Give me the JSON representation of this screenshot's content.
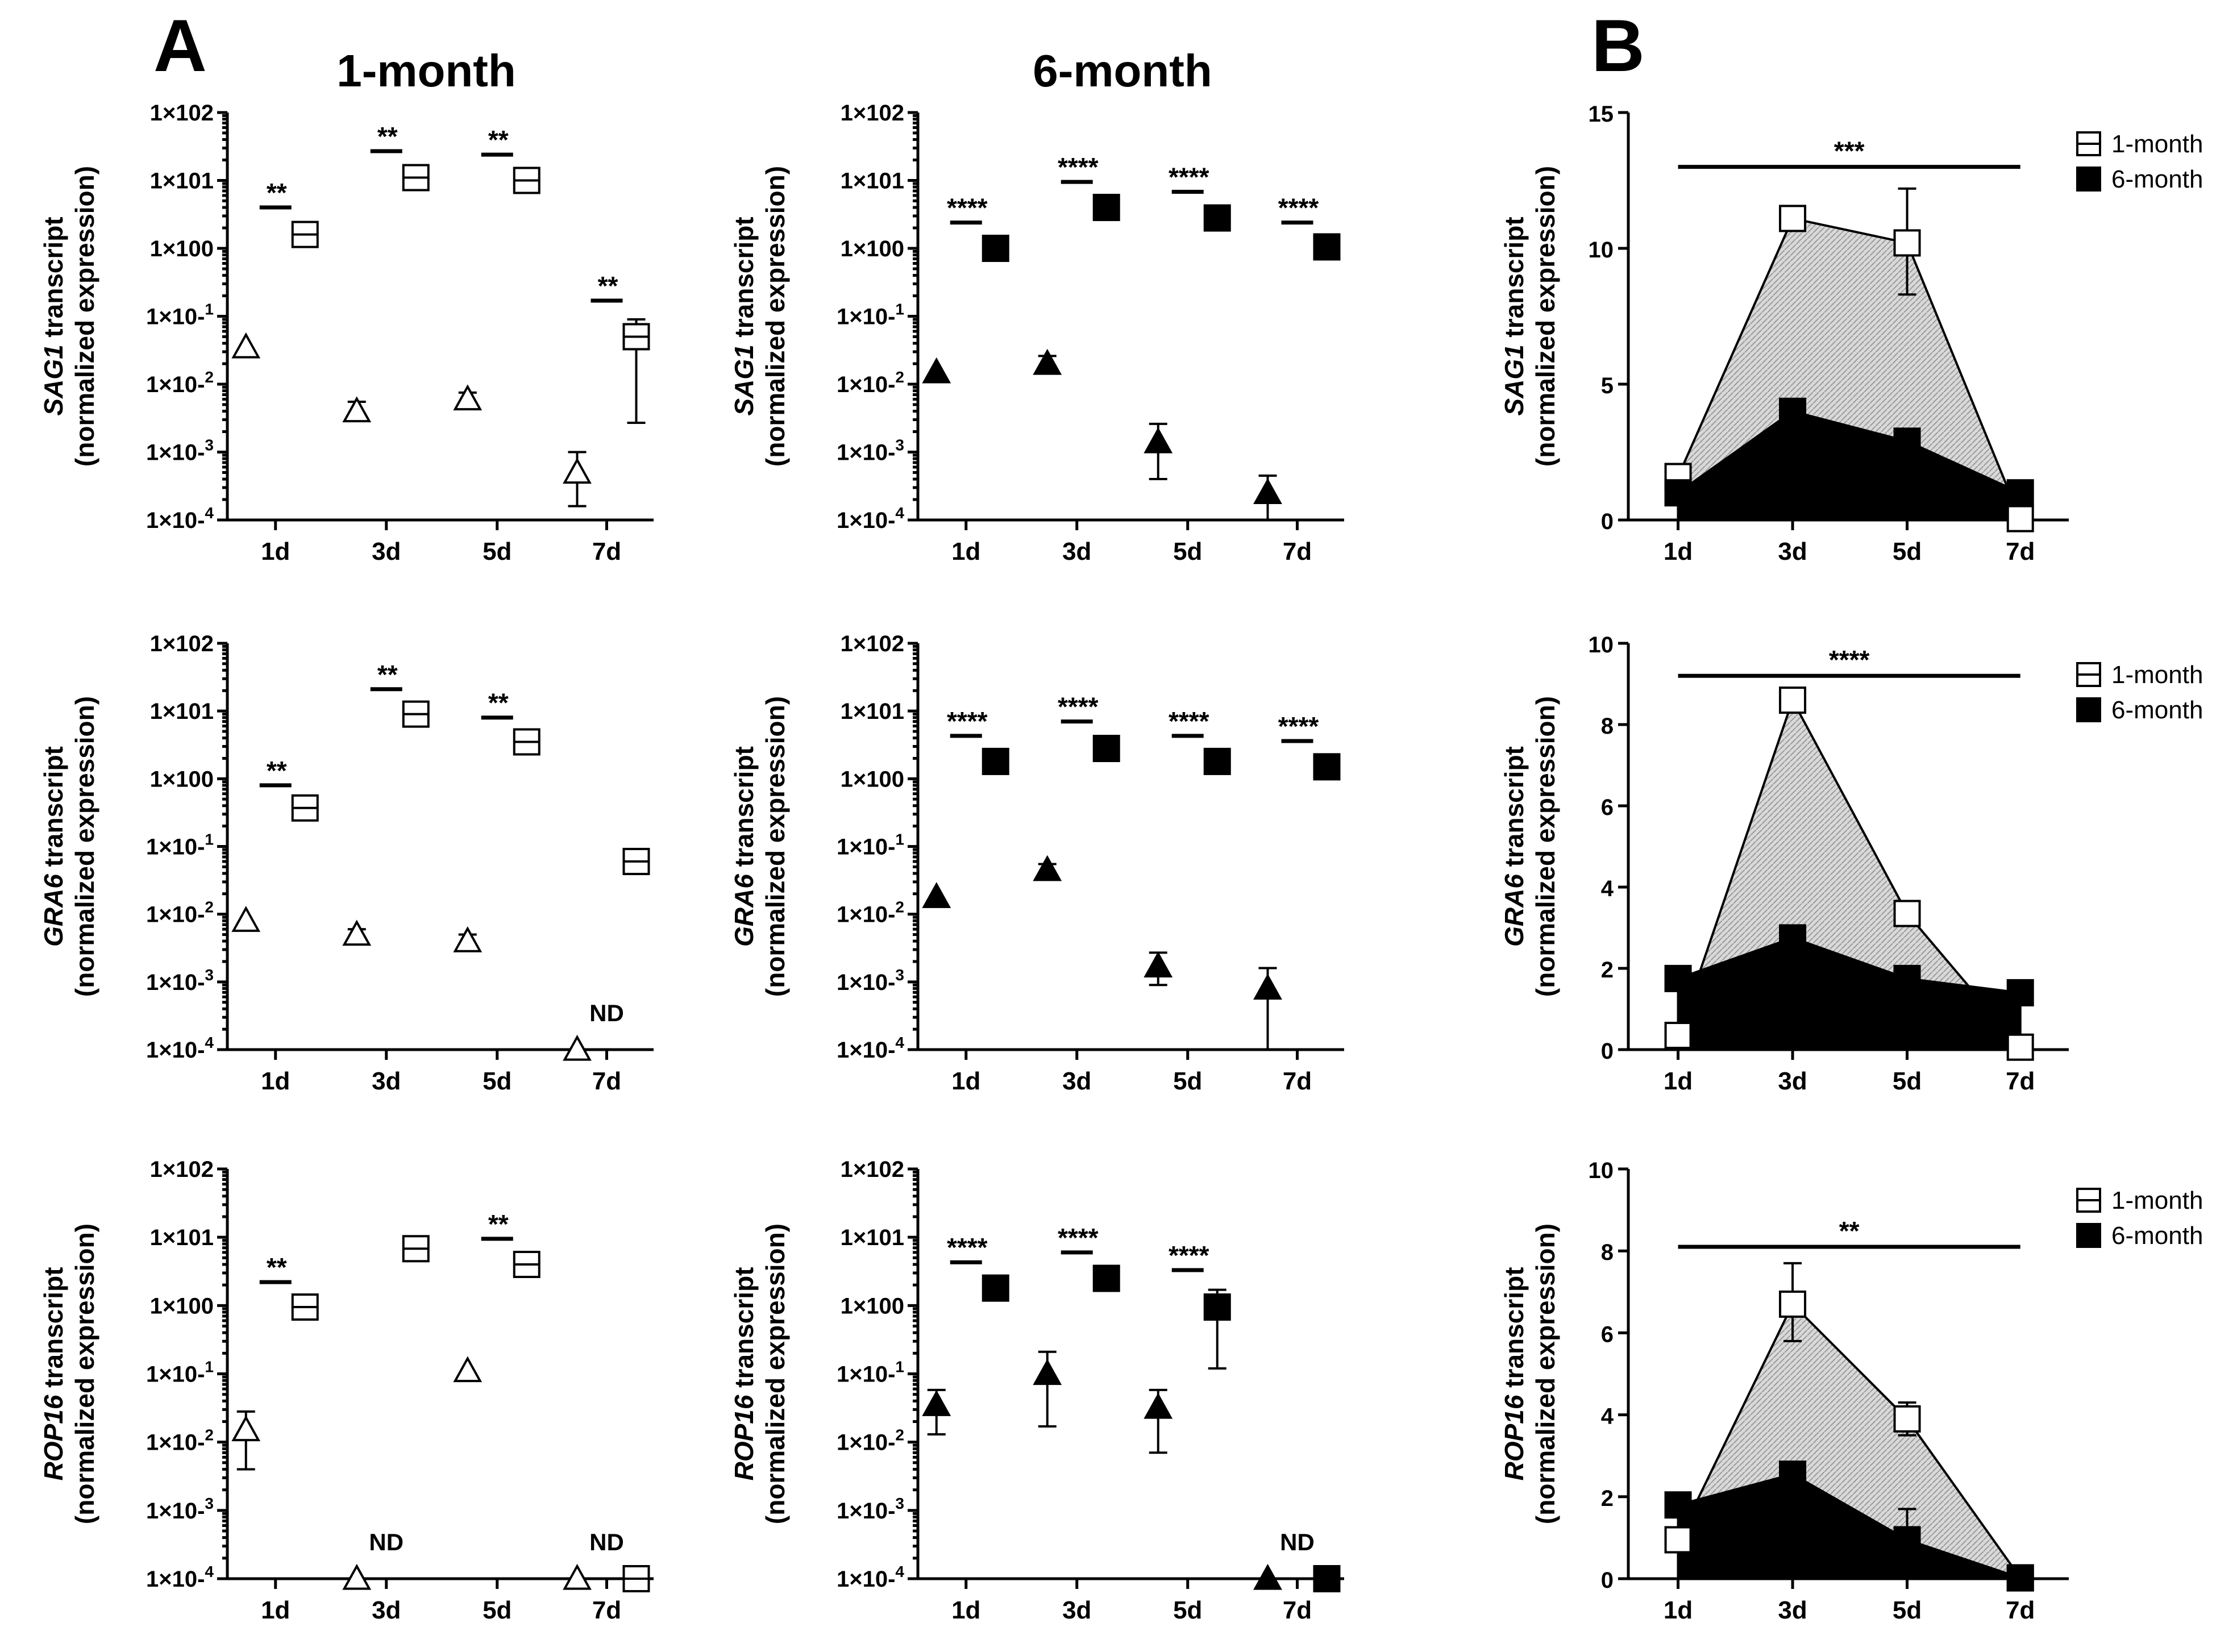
{
  "figure": {
    "panel_labels": [
      "A",
      "B"
    ],
    "column_titles": [
      "1-month",
      "6-month"
    ],
    "x_categories": [
      "1d",
      "3d",
      "5d",
      "7d"
    ],
    "log_tick_labels": [
      "1×10-4",
      "1×10-3",
      "1×10-2",
      "1×10-1",
      "1×100",
      "1×101",
      "1×102"
    ],
    "nd_label": "ND",
    "legend": [
      "1-month",
      "6-month"
    ],
    "colors": {
      "black": "#000000",
      "shade": "#d4d4d4",
      "white": "#ffffff"
    }
  },
  "chart_data": [
    {
      "id": "A-SAG1-1m",
      "type": "scatter",
      "scale": "log",
      "ylim": [
        0.0001,
        100
      ],
      "gene": "SAG1",
      "ylabel_suffix": " transcript",
      "ylabel2": "(normalized expression)",
      "categories": [
        "1d",
        "3d",
        "5d",
        "7d"
      ],
      "series": [
        {
          "name": "triangle",
          "marker": "triangle",
          "filled": false,
          "values": [
            0.035,
            0.004,
            0.006,
            0.0005
          ],
          "err": [
            null,
            [
              0.003,
              0.0055
            ],
            [
              0.005,
              0.0075
            ],
            [
              0.00016,
              0.001
            ]
          ]
        },
        {
          "name": "square",
          "marker": "square",
          "filled": false,
          "hline": true,
          "values": [
            1.6,
            11,
            10,
            0.05
          ],
          "err": [
            null,
            null,
            null,
            [
              0.0027,
              0.09
            ]
          ]
        }
      ],
      "significance": [
        {
          "cat": 0,
          "label": "**",
          "y": 4
        },
        {
          "cat": 1,
          "label": "**",
          "y": 27
        },
        {
          "cat": 2,
          "label": "**",
          "y": 24
        },
        {
          "cat": 3,
          "label": "**",
          "y": 0.17
        }
      ],
      "nd": []
    },
    {
      "id": "A-SAG1-6m",
      "type": "scatter",
      "scale": "log",
      "ylim": [
        0.0001,
        100
      ],
      "gene": "SAG1",
      "ylabel_suffix": " transcript",
      "ylabel2": "(normalized expression)",
      "categories": [
        "1d",
        "3d",
        "5d",
        "7d"
      ],
      "series": [
        {
          "name": "triangle",
          "marker": "triangle",
          "filled": true,
          "values": [
            0.015,
            0.02,
            0.0014,
            0.00025
          ],
          "err": [
            null,
            [
              0.016,
              0.026
            ],
            [
              0.0004,
              0.0026
            ],
            [
              0.0001,
              0.00045
            ]
          ]
        },
        {
          "name": "square",
          "marker": "square",
          "filled": true,
          "values": [
            1.0,
            4.0,
            2.8,
            1.05
          ],
          "err": [
            null,
            null,
            null,
            null
          ]
        }
      ],
      "significance": [
        {
          "cat": 0,
          "label": "****",
          "y": 2.4
        },
        {
          "cat": 1,
          "label": "****",
          "y": 9.5
        },
        {
          "cat": 2,
          "label": "****",
          "y": 6.8
        },
        {
          "cat": 3,
          "label": "****",
          "y": 2.4
        }
      ],
      "nd": []
    },
    {
      "id": "B-SAG1",
      "type": "area",
      "scale": "linear",
      "ylim": [
        0,
        15
      ],
      "yticks": [
        0,
        5,
        10,
        15
      ],
      "gene": "SAG1",
      "ylabel_suffix": " transcript",
      "ylabel2": "(normalized expression)",
      "categories": [
        "1d",
        "3d",
        "5d",
        "7d"
      ],
      "series": [
        {
          "name": "1-month",
          "values": [
            1.6,
            11.1,
            10.2,
            0.05
          ],
          "err": [
            null,
            null,
            [
              8.3,
              12.2
            ],
            null
          ]
        },
        {
          "name": "6-month",
          "values": [
            1.0,
            4.0,
            2.9,
            1.0
          ],
          "err": [
            null,
            null,
            null,
            null
          ]
        }
      ],
      "sig_bar": {
        "label": "***",
        "y": 13.0
      }
    },
    {
      "id": "A-GRA6-1m",
      "type": "scatter",
      "scale": "log",
      "ylim": [
        0.0001,
        100
      ],
      "gene": "GRA6",
      "ylabel_suffix": " transcript",
      "ylabel2": "(normalized expression)",
      "categories": [
        "1d",
        "3d",
        "5d",
        "7d"
      ],
      "series": [
        {
          "name": "triangle",
          "marker": "triangle",
          "filled": false,
          "values": [
            0.008,
            0.005,
            0.004,
            0.0001
          ],
          "err": [
            null,
            [
              0.004,
              0.006
            ],
            [
              0.003,
              0.005
            ],
            null
          ]
        },
        {
          "name": "square",
          "marker": "square",
          "filled": false,
          "hline": true,
          "values": [
            0.37,
            9,
            3.5,
            0.06
          ],
          "err": [
            [
              0.25,
              0.5
            ],
            null,
            null,
            null
          ]
        }
      ],
      "significance": [
        {
          "cat": 0,
          "label": "**",
          "y": 0.8
        },
        {
          "cat": 1,
          "label": "**",
          "y": 21
        },
        {
          "cat": 2,
          "label": "**",
          "y": 8
        }
      ],
      "nd": [
        3
      ]
    },
    {
      "id": "A-GRA6-6m",
      "type": "scatter",
      "scale": "log",
      "ylim": [
        0.0001,
        100
      ],
      "gene": "GRA6",
      "ylabel_suffix": " transcript",
      "ylabel2": "(normalized expression)",
      "categories": [
        "1d",
        "3d",
        "5d",
        "7d"
      ],
      "series": [
        {
          "name": "triangle",
          "marker": "triangle",
          "filled": true,
          "values": [
            0.018,
            0.045,
            0.0017,
            0.0008
          ],
          "err": [
            null,
            [
              0.038,
              0.055
            ],
            [
              0.0009,
              0.0027
            ],
            [
              0.0001,
              0.0016
            ]
          ]
        },
        {
          "name": "square",
          "marker": "square",
          "filled": true,
          "values": [
            1.8,
            2.8,
            1.8,
            1.5
          ],
          "err": [
            null,
            null,
            null,
            null
          ]
        }
      ],
      "significance": [
        {
          "cat": 0,
          "label": "****",
          "y": 4.3
        },
        {
          "cat": 1,
          "label": "****",
          "y": 7.0
        },
        {
          "cat": 2,
          "label": "****",
          "y": 4.3
        },
        {
          "cat": 3,
          "label": "****",
          "y": 3.6
        }
      ],
      "nd": []
    },
    {
      "id": "B-GRA6",
      "type": "area",
      "scale": "linear",
      "ylim": [
        0,
        10
      ],
      "yticks": [
        0,
        2,
        4,
        6,
        8,
        10
      ],
      "gene": "GRA6",
      "ylabel_suffix": " transcript",
      "ylabel2": "(normalized expression)",
      "categories": [
        "1d",
        "3d",
        "5d",
        "7d"
      ],
      "series": [
        {
          "name": "1-month",
          "values": [
            0.35,
            8.6,
            3.35,
            0.06
          ],
          "err": [
            null,
            null,
            null,
            null
          ]
        },
        {
          "name": "6-month",
          "values": [
            1.75,
            2.75,
            1.75,
            1.4
          ],
          "err": [
            null,
            null,
            null,
            null
          ]
        }
      ],
      "sig_bar": {
        "label": "****",
        "y": 9.2
      }
    },
    {
      "id": "A-ROP16-1m",
      "type": "scatter",
      "scale": "log",
      "ylim": [
        0.0001,
        100
      ],
      "gene": "ROP16",
      "ylabel_suffix": " transcript",
      "ylabel2": "(normalized expression)",
      "categories": [
        "1d",
        "3d",
        "5d",
        "7d"
      ],
      "series": [
        {
          "name": "triangle",
          "marker": "triangle",
          "filled": false,
          "values": [
            0.015,
            0.0001,
            0.11,
            0.0001
          ],
          "err": [
            [
              0.004,
              0.028
            ],
            null,
            null,
            null
          ]
        },
        {
          "name": "square",
          "marker": "square",
          "filled": false,
          "hline": true,
          "values": [
            0.95,
            6.8,
            4.0,
            0.0001
          ],
          "err": [
            null,
            null,
            [
              3.0,
              5.2
            ],
            null
          ]
        }
      ],
      "significance": [
        {
          "cat": 0,
          "label": "**",
          "y": 2.2
        },
        {
          "cat": 2,
          "label": "**",
          "y": 9.5
        }
      ],
      "nd": [
        1,
        3
      ]
    },
    {
      "id": "A-ROP16-6m",
      "type": "scatter",
      "scale": "log",
      "ylim": [
        0.0001,
        100
      ],
      "gene": "ROP16",
      "ylabel_suffix": " transcript",
      "ylabel2": "(normalized expression)",
      "categories": [
        "1d",
        "3d",
        "5d",
        "7d"
      ],
      "series": [
        {
          "name": "triangle",
          "marker": "triangle",
          "filled": true,
          "values": [
            0.035,
            0.1,
            0.032,
            0.0001
          ],
          "err": [
            [
              0.013,
              0.058
            ],
            [
              0.017,
              0.21
            ],
            [
              0.007,
              0.058
            ],
            null
          ]
        },
        {
          "name": "square",
          "marker": "square",
          "filled": true,
          "values": [
            1.8,
            2.5,
            0.95,
            0.0001
          ],
          "err": [
            null,
            null,
            [
              0.12,
              1.7
            ],
            null
          ]
        }
      ],
      "significance": [
        {
          "cat": 0,
          "label": "****",
          "y": 4.3
        },
        {
          "cat": 1,
          "label": "****",
          "y": 6.0
        },
        {
          "cat": 2,
          "label": "****",
          "y": 3.3
        }
      ],
      "nd": [
        3
      ]
    },
    {
      "id": "B-ROP16",
      "type": "area",
      "scale": "linear",
      "ylim": [
        0,
        10
      ],
      "yticks": [
        0,
        2,
        4,
        6,
        8,
        10
      ],
      "gene": "ROP16",
      "ylabel_suffix": " transcript",
      "ylabel2": "(normalized expression)",
      "categories": [
        "1d",
        "3d",
        "5d",
        "7d"
      ],
      "series": [
        {
          "name": "1-month",
          "values": [
            0.95,
            6.7,
            3.9,
            0.02
          ],
          "err": [
            null,
            [
              5.8,
              7.7
            ],
            [
              3.5,
              4.3
            ],
            null
          ]
        },
        {
          "name": "6-month",
          "values": [
            1.8,
            2.55,
            0.95,
            0.02
          ],
          "err": [
            null,
            null,
            [
              0.6,
              1.7
            ],
            null
          ]
        }
      ],
      "sig_bar": {
        "label": "**",
        "y": 8.1
      }
    }
  ]
}
